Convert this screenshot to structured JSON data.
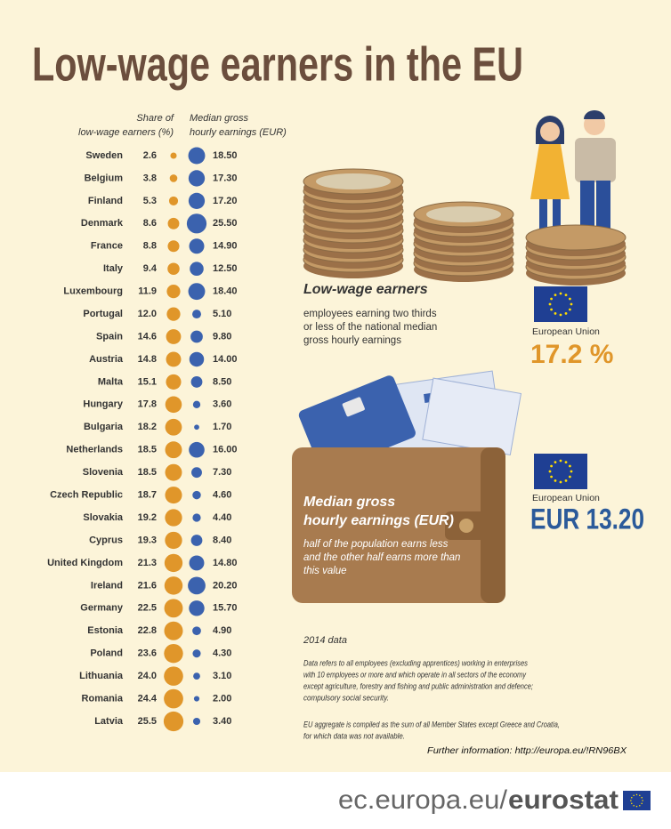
{
  "title": "Low-wage earners in the EU",
  "chart_data": {
    "type": "dot-table",
    "categories": [
      "Sweden",
      "Belgium",
      "Finland",
      "Denmark",
      "France",
      "Italy",
      "Luxembourg",
      "Portugal",
      "Spain",
      "Austria",
      "Malta",
      "Hungary",
      "Bulgaria",
      "Netherlands",
      "Slovenia",
      "Czech Republic",
      "Slovakia",
      "Cyprus",
      "United Kingdom",
      "Ireland",
      "Germany",
      "Estonia",
      "Poland",
      "Lithuania",
      "Romania",
      "Latvia"
    ],
    "series": [
      {
        "name": [
          "Share of",
          "low-wage earners (%)"
        ],
        "color": "#e0962a",
        "values": [
          2.6,
          3.8,
          5.3,
          8.6,
          8.8,
          9.4,
          11.9,
          12.0,
          14.6,
          14.8,
          15.1,
          17.8,
          18.2,
          18.5,
          18.5,
          18.7,
          19.2,
          19.3,
          21.3,
          21.6,
          22.5,
          22.8,
          23.6,
          24.0,
          24.4,
          25.5
        ],
        "value_labels": [
          "2.6",
          "3.8",
          "5.3",
          "8.6",
          "8.8",
          "9.4",
          "11.9",
          "12.0",
          "14.6",
          "14.8",
          "15.1",
          "17.8",
          "18.2",
          "18.5",
          "18.5",
          "18.7",
          "19.2",
          "19.3",
          "21.3",
          "21.6",
          "22.5",
          "22.8",
          "23.6",
          "24.0",
          "24.4",
          "25.5"
        ]
      },
      {
        "name": [
          "Median gross",
          "hourly earnings (EUR)"
        ],
        "color": "#3b62ae",
        "values": [
          18.5,
          17.3,
          17.2,
          25.5,
          14.9,
          12.5,
          18.4,
          5.1,
          9.8,
          14.0,
          8.5,
          3.6,
          1.7,
          16.0,
          7.3,
          4.6,
          4.4,
          8.4,
          14.8,
          20.2,
          15.7,
          4.9,
          4.3,
          3.1,
          2.0,
          3.4
        ],
        "value_labels": [
          "18.50",
          "17.30",
          "17.20",
          "25.50",
          "14.90",
          "12.50",
          "18.40",
          "5.10",
          "9.80",
          "14.00",
          "8.50",
          "3.60",
          "1.70",
          "16.00",
          "7.30",
          "4.60",
          "4.40",
          "8.40",
          "14.80",
          "20.20",
          "15.70",
          "4.90",
          "4.30",
          "3.10",
          "2.00",
          "3.40"
        ]
      }
    ]
  },
  "low_wage": {
    "heading": "Low-wage earners",
    "description": [
      "employees earning two thirds",
      "or less of the national median",
      "gross hourly earnings"
    ],
    "region": "European Union",
    "value": "17.2 %"
  },
  "median": {
    "heading": [
      "Median gross",
      "hourly earnings (EUR)"
    ],
    "description": [
      "half of the population earns less",
      "and the other half earns more than",
      "this value"
    ],
    "region": "European Union",
    "value": "EUR 13.20"
  },
  "notes": {
    "year": "2014 data",
    "definition": [
      "Data refers to all employees (excluding apprentices) working in enterprises",
      "with 10 employees or more and which operate in all sectors of the economy",
      "except agriculture, forestry and fishing and public administration and defence;",
      "compulsory social security."
    ],
    "aggregate": [
      "EU  aggregate is compiled as the sum of all Member States except Greece  and Croatia,",
      " for which data was not available."
    ],
    "further": "Further information: http://europa.eu/!RN96BX"
  },
  "footer": {
    "site": "ec.europa.eu/",
    "brand": "eurostat"
  }
}
